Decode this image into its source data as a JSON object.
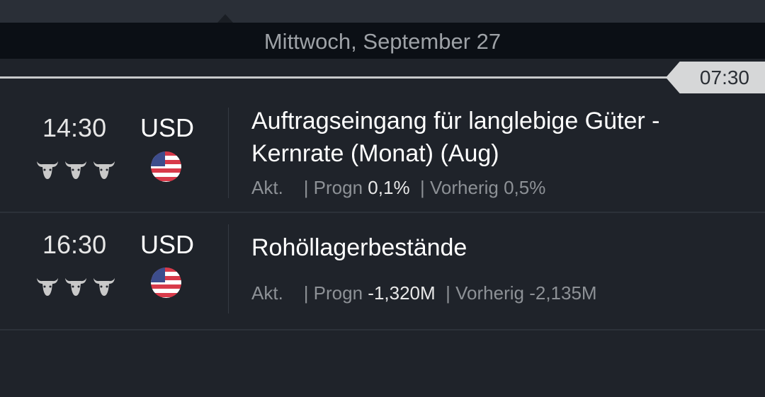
{
  "header": {
    "day": "Mittwoch, September 27",
    "now_time": "07:30"
  },
  "events": [
    {
      "time": "14:30",
      "currency": "USD",
      "importance": 3,
      "flag": "us-flag-icon",
      "title": "Auftragseingang für langlebige Güter - Kernrate (Monat) (Aug)",
      "actual_label": "Akt.",
      "actual": "",
      "forecast_label": "| Progn",
      "forecast": "0,1%",
      "previous_label": "| Vorherig",
      "previous": "0,5%"
    },
    {
      "time": "16:30",
      "currency": "USD",
      "importance": 3,
      "flag": "us-flag-icon",
      "title": "Rohöllagerbestände",
      "actual_label": "Akt.",
      "actual": "",
      "forecast_label": "| Progn",
      "forecast": "-1,320M",
      "previous_label": "| Vorherig",
      "previous": "-2,135M"
    }
  ],
  "colors": {
    "background": "#1f232a",
    "header_bg": "#0b0f15",
    "bull": "#c9c9c9"
  }
}
